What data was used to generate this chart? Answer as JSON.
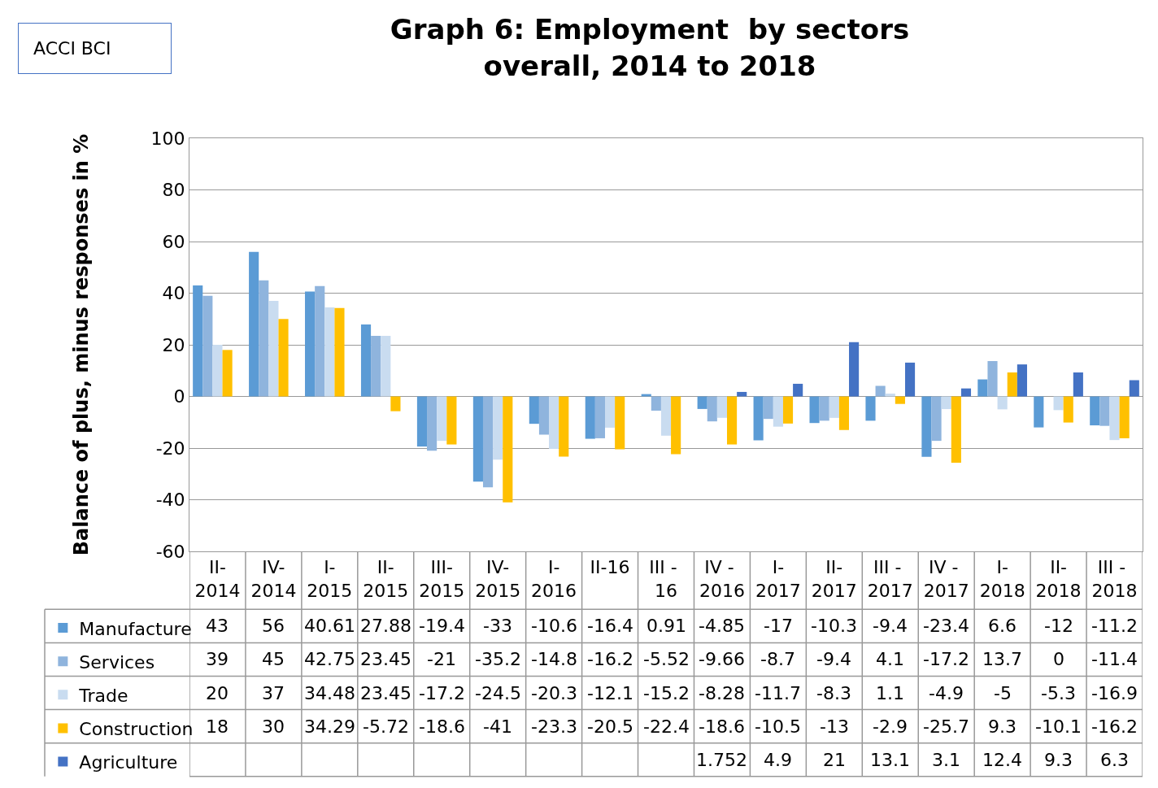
{
  "chart_data": {
    "type": "bar",
    "title": "Graph 6: Employment  by sectors\noverall, 2014 to 2018",
    "ylabel": "Balance of plus, minus responses in %",
    "annotations": [
      "ACCI BCI"
    ],
    "categories": [
      "II-2014",
      "IV-2014",
      "I-2015",
      "II-2015",
      "III-2015",
      "IV-2015",
      "I-2016",
      "II-16",
      "III - 16",
      "IV - 2016",
      "I-2017",
      "II-2017",
      "III - 2017",
      "IV - 2017",
      "I-2018",
      "II-2018",
      "III - 2018"
    ],
    "series": [
      {
        "name": "Manufacture",
        "color": "#5b9bd5",
        "values": [
          43,
          56,
          40.61,
          27.88,
          -19.4,
          -33,
          -10.6,
          -16.4,
          0.91,
          -4.85,
          -17,
          -10.3,
          -9.4,
          -23.4,
          6.6,
          -12,
          -11.2
        ]
      },
      {
        "name": "Services",
        "color": "#8fb4dd",
        "values": [
          39,
          45,
          42.75,
          23.45,
          -21,
          -35.2,
          -14.8,
          -16.2,
          -5.52,
          -9.66,
          -8.7,
          -9.4,
          4.1,
          -17.2,
          13.7,
          0,
          -11.4
        ]
      },
      {
        "name": "Trade",
        "color": "#c9dcf0",
        "values": [
          20,
          37,
          34.48,
          23.45,
          -17.2,
          -24.5,
          -20.3,
          -12.1,
          -15.2,
          -8.28,
          -11.7,
          -8.3,
          1.1,
          -4.9,
          -5,
          -5.3,
          -16.9
        ]
      },
      {
        "name": "Construction",
        "color": "#ffc000",
        "values": [
          18,
          30,
          34.29,
          -5.72,
          -18.6,
          -41,
          -23.3,
          -20.5,
          -22.4,
          -18.6,
          -10.5,
          -13,
          -2.9,
          -25.7,
          9.3,
          -10.1,
          -16.2
        ]
      },
      {
        "name": "Agriculture",
        "color": "#4472c4",
        "values": [
          null,
          null,
          null,
          null,
          null,
          null,
          null,
          null,
          null,
          1.752,
          4.9,
          21,
          13.1,
          3.1,
          12.4,
          9.3,
          6.3
        ]
      }
    ],
    "ylim": [
      -60,
      100
    ],
    "yticks": [
      -60,
      -40,
      -20,
      0,
      20,
      40,
      60,
      80,
      100
    ],
    "grid": "y",
    "legend": "bottom left",
    "data_labels": true
  }
}
